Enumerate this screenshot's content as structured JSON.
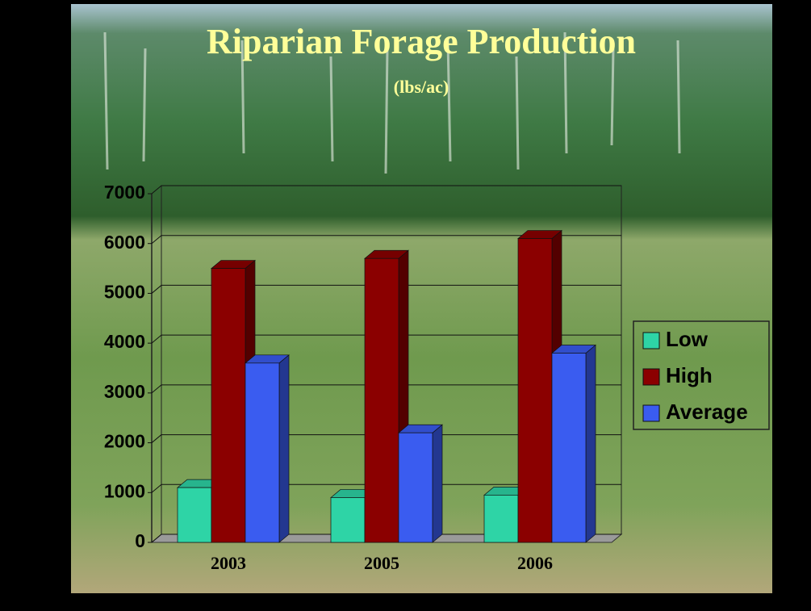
{
  "chart_data": {
    "type": "bar3d",
    "title": "Riparian Forage Production",
    "subtitle": "(lbs/ac)",
    "categories": [
      "2003",
      "2005",
      "2006"
    ],
    "series": [
      {
        "name": "Low",
        "color": "#2ed4a6",
        "values": [
          1100,
          900,
          950
        ]
      },
      {
        "name": "High",
        "color": "#8b0000",
        "values": [
          5500,
          5700,
          6100
        ]
      },
      {
        "name": "Average",
        "color": "#3a5cf0",
        "values": [
          3600,
          2200,
          3800
        ]
      }
    ],
    "ylim": [
      0,
      7000
    ],
    "yticks": [
      0,
      1000,
      2000,
      3000,
      4000,
      5000,
      6000,
      7000
    ],
    "grid": true,
    "legend_position": "right"
  }
}
